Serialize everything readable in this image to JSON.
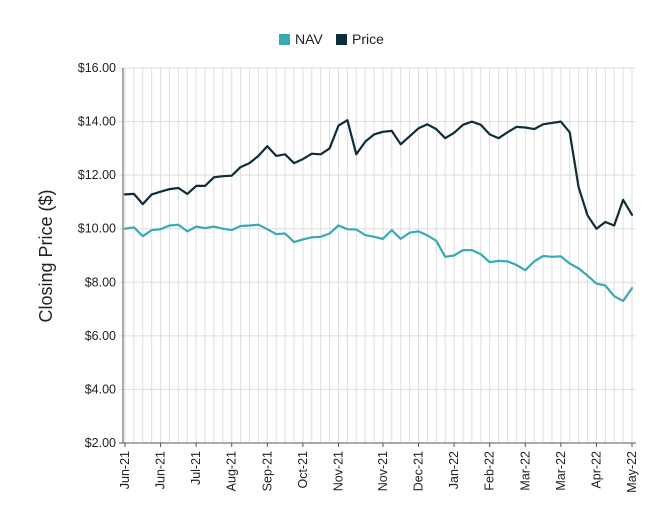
{
  "chart_data": {
    "type": "line",
    "title": "",
    "xlabel": "",
    "ylabel": "Closing Price ($)",
    "ylim": [
      2,
      16
    ],
    "y_ticks": [
      2,
      4,
      6,
      8,
      10,
      12,
      14,
      16
    ],
    "y_tick_labels": [
      "$2.00",
      "$4.00",
      "$6.00",
      "$8.00",
      "$10.00",
      "$12.00",
      "$14.00",
      "$16.00"
    ],
    "x_tick_labels": [
      "Jun-21",
      "Jun-21",
      "Jul-21",
      "Aug-21",
      "Sep-21",
      "Oct-21",
      "Nov-21",
      "Nov-21",
      "Dec-21",
      "Jan-22",
      "Feb-22",
      "Mar-22",
      "Mar-22",
      "Apr-22",
      "May-22"
    ],
    "grid": true,
    "legend": {
      "position": "top-center"
    },
    "series": [
      {
        "name": "NAV",
        "color": "#3aa8b5",
        "values": [
          10.0,
          10.05,
          9.72,
          9.95,
          9.98,
          10.12,
          10.15,
          9.9,
          10.08,
          10.02,
          10.08,
          10.0,
          9.95,
          10.1,
          10.12,
          10.15,
          9.98,
          9.8,
          9.82,
          9.5,
          9.6,
          9.68,
          9.7,
          9.82,
          10.12,
          9.98,
          9.97,
          9.76,
          9.7,
          9.62,
          9.95,
          9.62,
          9.85,
          9.9,
          9.75,
          9.55,
          8.95,
          9.0,
          9.2,
          9.2,
          9.05,
          8.75,
          8.8,
          8.78,
          8.65,
          8.45,
          8.78,
          8.98,
          8.95,
          8.97,
          8.7,
          8.52,
          8.25,
          7.95,
          7.88,
          7.48,
          7.3,
          7.78
        ]
      },
      {
        "name": "Price",
        "color": "#0d2d3a",
        "values": [
          11.28,
          11.3,
          10.92,
          11.28,
          11.38,
          11.48,
          11.52,
          11.3,
          11.6,
          11.6,
          11.92,
          11.96,
          11.98,
          12.3,
          12.45,
          12.72,
          13.08,
          12.72,
          12.78,
          12.45,
          12.6,
          12.8,
          12.78,
          13.0,
          13.85,
          14.05,
          12.78,
          13.25,
          13.52,
          13.62,
          13.65,
          13.15,
          13.45,
          13.75,
          13.9,
          13.72,
          13.38,
          13.58,
          13.88,
          14.0,
          13.88,
          13.52,
          13.38,
          13.6,
          13.8,
          13.78,
          13.72,
          13.9,
          13.95,
          14.0,
          13.6,
          11.55,
          10.5,
          10.0,
          10.25,
          10.12,
          11.08,
          10.52
        ]
      }
    ]
  }
}
